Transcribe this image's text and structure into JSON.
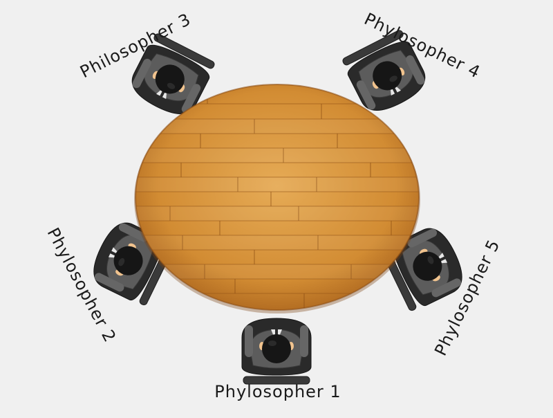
{
  "scene": {
    "philosophers": [
      {
        "id": 1,
        "label": "Phylosopher 1"
      },
      {
        "id": 2,
        "label": "Phylosopher 2"
      },
      {
        "id": 3,
        "label": "Philosopher 3"
      },
      {
        "id": 4,
        "label": "Phylosopher 4"
      },
      {
        "id": 5,
        "label": "Phylosopher 5"
      }
    ]
  },
  "colors": {
    "background": "#f0f0f0",
    "table_light": "#e0a450",
    "table_dark": "#b8701f",
    "suit": "#555555",
    "chair": "#2b2b2b",
    "hair": "#111111",
    "skin": "#f1c38e"
  }
}
